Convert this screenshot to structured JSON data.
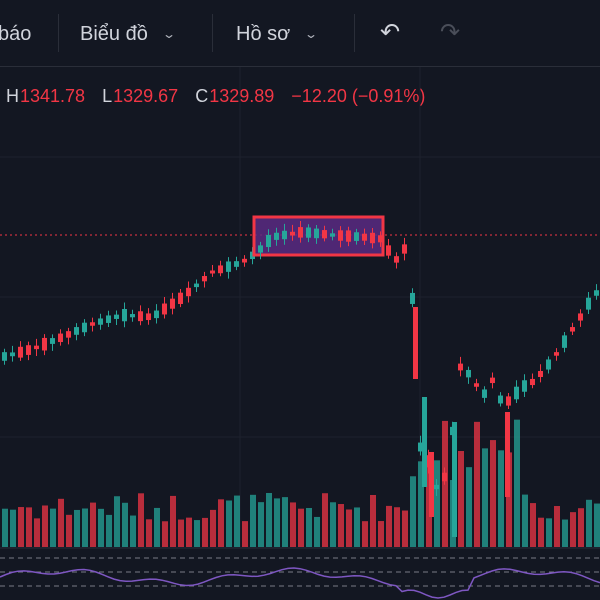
{
  "toolbar": {
    "cut_label": "báo",
    "chart_label": "Biểu đồ",
    "profile_label": "Hồ sơ",
    "undo_icon": "undo-icon",
    "redo_icon": "redo-icon"
  },
  "ohlc": {
    "h_key": "H",
    "h_val": "1341.78",
    "l_key": "L",
    "l_val": "1329.67",
    "c_key": "C",
    "c_val": "1329.89",
    "change": "−12.20 (−0.91%)"
  },
  "colors": {
    "background": "#131722",
    "up": "#26a69a",
    "down": "#f23645",
    "highlight_border": "#f23645",
    "highlight_fill": "#5b2a82",
    "rsi_line": "#7e57c2",
    "price_line": "#f23645"
  }
}
